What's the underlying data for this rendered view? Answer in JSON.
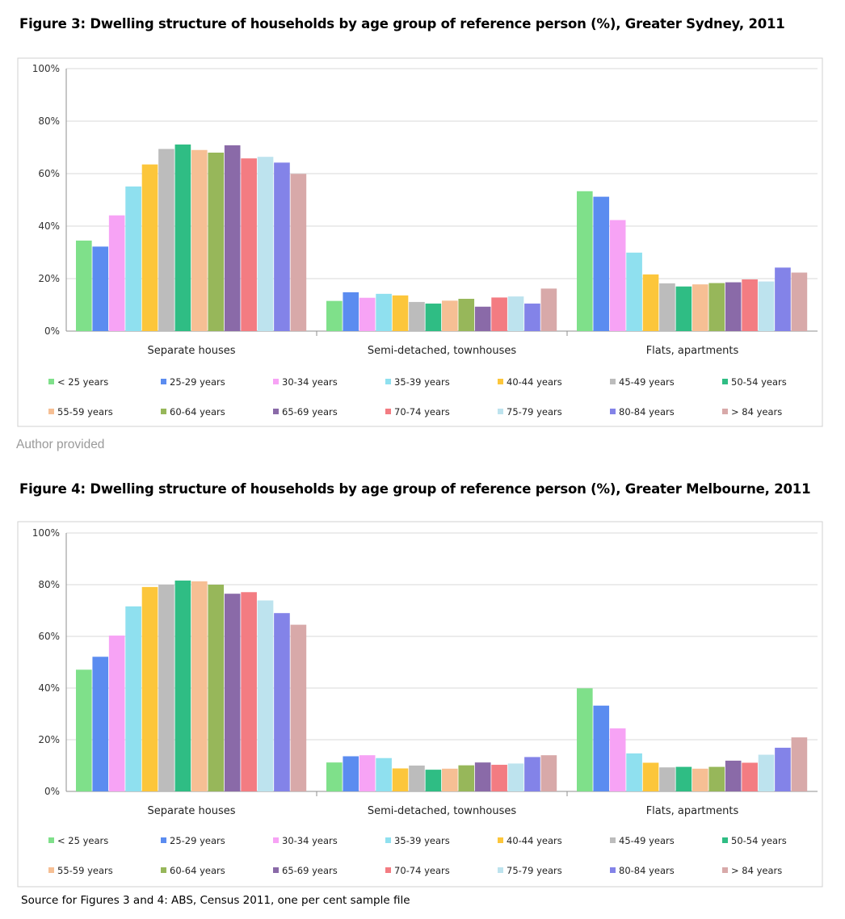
{
  "caption": "Author provided",
  "source": "Source for Figures 3 and 4: ABS, Census 2011, one per cent sample file",
  "series_colors": [
    "#7fe08a",
    "#5b8cf0",
    "#f7a3f5",
    "#8fe0ef",
    "#fcc63b",
    "#bcbcbc",
    "#2fbd84",
    "#f6bf94",
    "#97b75a",
    "#8a6aa8",
    "#f37c82",
    "#bde3ee",
    "#8383e8",
    "#d8a9a9"
  ],
  "chart_data": [
    {
      "type": "bar",
      "title": "Figure 3: Dwelling structure of households by age group of reference person (%), Greater Sydney, 2011",
      "categories": [
        "Separate houses",
        "Semi-detached, townhouses",
        "Flats, apartments"
      ],
      "yticks": [
        "0%",
        "20%",
        "40%",
        "60%",
        "80%",
        "100%"
      ],
      "ylim": [
        0,
        100
      ],
      "legend_position": "bottom",
      "series": [
        {
          "name": "< 25 years",
          "values": [
            34.5,
            11.5,
            53.3
          ]
        },
        {
          "name": "25-29 years",
          "values": [
            32.2,
            14.8,
            51.2
          ]
        },
        {
          "name": "30-34 years",
          "values": [
            44.1,
            12.7,
            42.3
          ]
        },
        {
          "name": "35-39 years",
          "values": [
            55.1,
            14.2,
            29.9
          ]
        },
        {
          "name": "40-44 years",
          "values": [
            63.5,
            13.6,
            21.6
          ]
        },
        {
          "name": "45-49 years",
          "values": [
            69.4,
            11.1,
            18.2
          ]
        },
        {
          "name": "50-54 years",
          "values": [
            71.1,
            10.5,
            17.0
          ]
        },
        {
          "name": "55-59 years",
          "values": [
            69.0,
            11.6,
            17.8
          ]
        },
        {
          "name": "60-64 years",
          "values": [
            68.0,
            12.3,
            18.3
          ]
        },
        {
          "name": "65-69 years",
          "values": [
            70.8,
            9.3,
            18.6
          ]
        },
        {
          "name": "70-74 years",
          "values": [
            65.8,
            12.8,
            19.7
          ]
        },
        {
          "name": "75-79 years",
          "values": [
            66.4,
            13.2,
            18.9
          ]
        },
        {
          "name": "80-84 years",
          "values": [
            64.2,
            10.5,
            24.2
          ]
        },
        {
          "name": "> 84 years",
          "values": [
            59.9,
            16.2,
            22.3
          ]
        }
      ]
    },
    {
      "type": "bar",
      "title": "Figure 4: Dwelling structure of households by age group of reference person (%), Greater Melbourne, 2011",
      "categories": [
        "Separate houses",
        "Semi-detached, townhouses",
        "Flats, apartments"
      ],
      "yticks": [
        "0%",
        "20%",
        "40%",
        "60%",
        "80%",
        "100%"
      ],
      "ylim": [
        0,
        100
      ],
      "legend_position": "bottom",
      "series": [
        {
          "name": "< 25 years",
          "values": [
            47.1,
            11.2,
            39.9
          ]
        },
        {
          "name": "25-29 years",
          "values": [
            52.1,
            13.6,
            33.2
          ]
        },
        {
          "name": "30-34 years",
          "values": [
            60.3,
            14.0,
            24.4
          ]
        },
        {
          "name": "35-39 years",
          "values": [
            71.6,
            12.9,
            14.7
          ]
        },
        {
          "name": "40-44 years",
          "values": [
            79.1,
            8.9,
            11.1
          ]
        },
        {
          "name": "45-49 years",
          "values": [
            80.0,
            10.0,
            9.3
          ]
        },
        {
          "name": "50-54 years",
          "values": [
            81.6,
            8.4,
            9.5
          ]
        },
        {
          "name": "55-59 years",
          "values": [
            81.3,
            8.8,
            8.8
          ]
        },
        {
          "name": "60-64 years",
          "values": [
            80.0,
            10.1,
            9.5
          ]
        },
        {
          "name": "65-69 years",
          "values": [
            76.5,
            11.2,
            11.9
          ]
        },
        {
          "name": "70-74 years",
          "values": [
            77.1,
            10.3,
            11.1
          ]
        },
        {
          "name": "75-79 years",
          "values": [
            73.9,
            10.8,
            14.2
          ]
        },
        {
          "name": "80-84 years",
          "values": [
            69.0,
            13.3,
            16.9
          ]
        },
        {
          "name": "> 84 years",
          "values": [
            64.5,
            14.0,
            20.9
          ]
        }
      ]
    }
  ]
}
